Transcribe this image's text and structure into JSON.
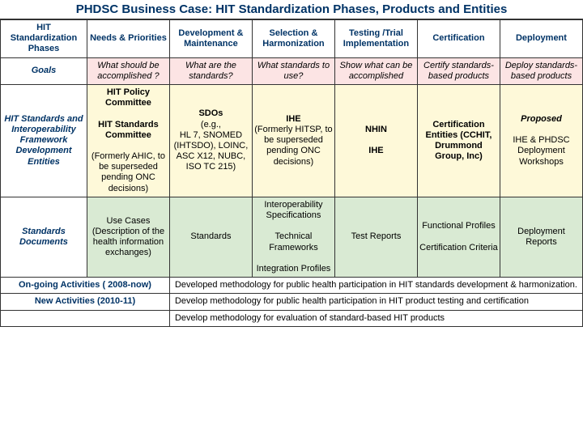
{
  "title": "PHDSC Business Case: HIT Standardization Phases, Products and Entities",
  "colors": {
    "header_text": "#003366",
    "border": "#333333",
    "pink": "#fce4e4",
    "yellow": "#fef9d9",
    "green": "#d9ead3",
    "white": "#ffffff"
  },
  "columns": [
    "HIT Standardization Phases",
    "Needs & Priorities",
    "Development & Maintenance",
    "Selection & Harmonization",
    "Testing /Trial Implementation",
    "Certification",
    "Deployment"
  ],
  "rows": {
    "goals": {
      "label": "Goals",
      "cells": [
        "What should be accomplished ?",
        "What are the standards?",
        "What standards to use?",
        "Show what can be accomplished",
        "Certify standards-based products",
        "Deploy standards-based products"
      ]
    },
    "entities": {
      "label": "HIT Standards and Interoperability Framework Development Entities",
      "cells": [
        "HIT Policy Committee\n\nHIT Standards Committee\n\n(Formerly AHIC, to be superseded pending ONC decisions)",
        "SDOs\n(e.g.,\nHL 7, SNOMED (IHTSDO), LOINC, ASC X12, NUBC, ISO TC 215)",
        "IHE\n(Formerly HITSP, to be superseded pending ONC decisions)",
        "NHIN\n\nIHE",
        "Certification Entities (CCHIT, Drummond Group, Inc)",
        "Proposed\n\nIHE & PHDSC Deployment Workshops"
      ]
    },
    "documents": {
      "label": "Standards Documents",
      "cells": [
        "Use Cases (Description of the health information exchanges)",
        "Standards",
        "Interoperability Specifications\n\nTechnical Frameworks\n\nIntegration Profiles",
        "Test Reports",
        "Functional Profiles\n\nCertification Criteria",
        "Deployment Reports"
      ]
    }
  },
  "activities": {
    "ongoing": {
      "label": "On-going Activities ( 2008-now)",
      "text": "Developed methodology for public health participation in HIT standards development & harmonization."
    },
    "new": {
      "label": "New Activities (2010-11)",
      "text": "Develop methodology for public health participation in HIT product testing and certification"
    },
    "partial": {
      "text": "Develop methodology for evaluation of standard-based HIT products"
    }
  }
}
